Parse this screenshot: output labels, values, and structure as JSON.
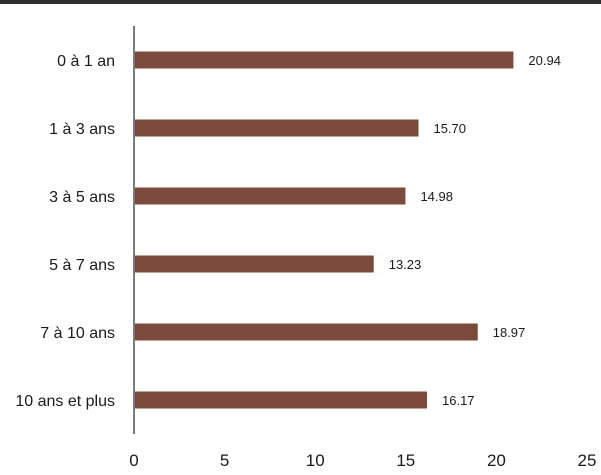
{
  "colors": {
    "bar": "#7b4a3d",
    "axis": "#222222",
    "text": "#1a1a1a",
    "top_rule": "#2f2f2f"
  },
  "chart_data": {
    "type": "bar",
    "orientation": "horizontal",
    "categories": [
      "0 à 1 an",
      "1 à 3 ans",
      "3 à 5 ans",
      "5 à 7 ans",
      "7 à 10 ans",
      "10 ans et plus"
    ],
    "values": [
      20.94,
      15.7,
      14.98,
      13.23,
      18.97,
      16.17
    ],
    "value_labels": [
      "20.94",
      "15.70",
      "14.98",
      "13.23",
      "18.97",
      "16.17"
    ],
    "xlim": [
      0,
      25
    ],
    "x_ticks": [
      0,
      5,
      10,
      15,
      20,
      25
    ],
    "x_tick_labels": [
      "0",
      "5",
      "10",
      "15",
      "20",
      "25"
    ],
    "title": "",
    "xlabel": "",
    "ylabel": "",
    "grid": false,
    "legend": "none"
  }
}
